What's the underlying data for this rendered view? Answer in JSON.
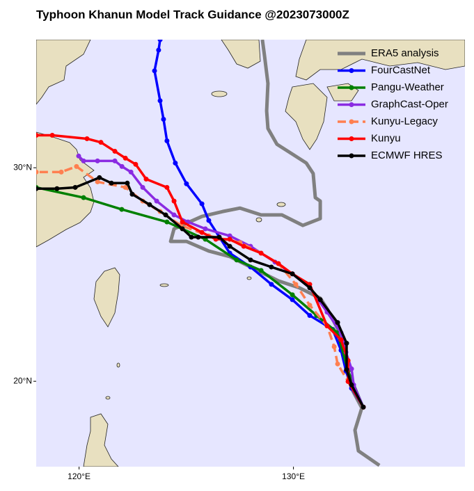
{
  "chart_data": {
    "type": "track",
    "title": "Typhoon Khanun Model Track Guidance @2023073000Z",
    "xlim": [
      118,
      138
    ],
    "ylim": [
      16,
      36
    ],
    "xticks": [
      {
        "value": 120,
        "label": "120°E"
      },
      {
        "value": 130,
        "label": "130°E"
      }
    ],
    "yticks": [
      {
        "value": 20,
        "label": "20°N"
      },
      {
        "value": 30,
        "label": "30°N"
      }
    ],
    "legend": "upper right",
    "series": [
      {
        "name": "ERA5 analysis",
        "color": "#808080",
        "marker": false,
        "linestyle": "solid",
        "x": [
          134.01,
          133.03,
          132.87,
          133.19,
          132.71,
          132.38,
          132.16,
          131.57,
          131.25,
          130.27,
          129.3,
          128.32,
          127.03,
          126.05,
          125.01,
          124.27,
          124.43,
          125.73,
          126.7,
          127.51,
          128.49,
          129.46,
          130.44,
          131.25,
          131.25,
          131.02,
          130.92,
          130.6,
          129.95,
          129.23,
          128.81,
          128.75,
          128.81,
          128.65,
          128.55
        ],
        "values": [
          16.06,
          16.74,
          17.71,
          18.75,
          19.66,
          20.97,
          22.27,
          23.4,
          23.89,
          24.38,
          24.7,
          25.19,
          25.84,
          26.1,
          26.55,
          26.55,
          27.14,
          27.72,
          27.95,
          28.11,
          27.79,
          27.79,
          27.3,
          27.62,
          28.44,
          28.6,
          29.73,
          30.22,
          30.64,
          31.1,
          31.84,
          32.66,
          33.95,
          35.25,
          36.0
        ]
      },
      {
        "name": "FourCastNet",
        "color": "#0000ff",
        "marker": true,
        "linestyle": "solid",
        "x": [
          133.26,
          132.71,
          132.45,
          132.22,
          131.83,
          130.76,
          129.95,
          128.97,
          128.0,
          127.03,
          126.05,
          125.73,
          125.01,
          124.49,
          124.1,
          123.94,
          123.78,
          123.52,
          123.71,
          123.78
        ],
        "values": [
          18.79,
          19.67,
          20.48,
          21.45,
          22.43,
          23.08,
          23.82,
          24.54,
          25.35,
          26.0,
          27.53,
          28.31,
          29.25,
          30.22,
          31.26,
          32.27,
          33.14,
          34.54,
          35.51,
          36.0
        ]
      },
      {
        "name": "Pangu-Weather",
        "color": "#008000",
        "marker": true,
        "linestyle": "solid",
        "x": [
          133.26,
          132.55,
          132.06,
          131.08,
          129.95,
          128.49,
          127.35,
          125.89,
          124.1,
          121.99,
          120.21,
          118.0
        ],
        "values": [
          18.79,
          20.48,
          22.27,
          23.08,
          24.05,
          25.19,
          25.68,
          26.65,
          27.46,
          28.05,
          28.6,
          29.08
        ]
      },
      {
        "name": "GraphCast-Oper",
        "color": "#8a2be2",
        "marker": true,
        "linestyle": "solid",
        "x": [
          133.26,
          132.81,
          132.71,
          132.45,
          132.22,
          131.57,
          130.76,
          129.95,
          129.14,
          128.0,
          127.03,
          125.89,
          125.08,
          124.43,
          123.62,
          122.97,
          122.42,
          122.0,
          121.67,
          120.86,
          120.21,
          119.98
        ],
        "values": [
          18.79,
          19.83,
          20.58,
          21.36,
          22.27,
          23.24,
          24.38,
          25.03,
          25.58,
          26.32,
          26.81,
          27.14,
          27.46,
          27.79,
          28.44,
          29.08,
          29.8,
          30.06,
          30.32,
          30.32,
          30.32,
          30.55
        ]
      },
      {
        "name": "Kunyu-Legacy",
        "color": "#ff7f50",
        "marker": true,
        "linestyle": "dashed",
        "x": [
          133.26,
          132.55,
          132.06,
          131.9,
          131.57,
          130.76,
          130.11,
          129.3,
          128.49,
          127.51,
          126.05,
          124.75,
          123.78,
          122.97,
          122.16,
          120.86,
          119.88,
          119.17,
          118.0
        ],
        "values": [
          18.79,
          19.99,
          20.81,
          21.62,
          22.59,
          23.56,
          24.54,
          25.51,
          26.0,
          26.49,
          26.81,
          27.3,
          27.95,
          28.44,
          29.08,
          29.34,
          30.06,
          29.8,
          29.8
        ]
      },
      {
        "name": "Kunyu",
        "color": "#ff0000",
        "marker": true,
        "linestyle": "solid",
        "x": [
          133.26,
          132.55,
          132.55,
          132.22,
          131.57,
          130.76,
          129.95,
          129.3,
          128.49,
          127.68,
          127.03,
          126.38,
          125.73,
          124.82,
          124.43,
          124.1,
          123.13,
          122.64,
          122.16,
          121.67,
          121.02,
          120.37,
          118.75,
          118.0
        ],
        "values": [
          18.79,
          19.99,
          20.97,
          21.94,
          22.59,
          24.54,
          25.03,
          25.51,
          26.0,
          26.32,
          26.65,
          26.65,
          26.97,
          27.46,
          28.44,
          29.08,
          29.47,
          30.16,
          30.45,
          30.77,
          31.19,
          31.36,
          31.52,
          31.52
        ]
      },
      {
        "name": "ECMWF HRES",
        "color": "#000000",
        "marker": true,
        "linestyle": "solid",
        "x": [
          133.26,
          132.71,
          132.48,
          132.48,
          132.06,
          131.25,
          130.76,
          129.95,
          128.97,
          128.0,
          127.03,
          126.54,
          125.56,
          125.24,
          124.82,
          124.04,
          123.29,
          122.48,
          122.25,
          121.51,
          120.95,
          119.82,
          118.97,
          118.0
        ],
        "values": [
          18.79,
          19.83,
          20.55,
          21.78,
          22.75,
          23.82,
          24.38,
          25.03,
          25.35,
          25.68,
          26.32,
          26.75,
          26.75,
          26.75,
          27.14,
          27.79,
          28.27,
          28.76,
          29.28,
          29.28,
          29.54,
          29.08,
          29.02,
          29.02
        ]
      }
    ]
  }
}
